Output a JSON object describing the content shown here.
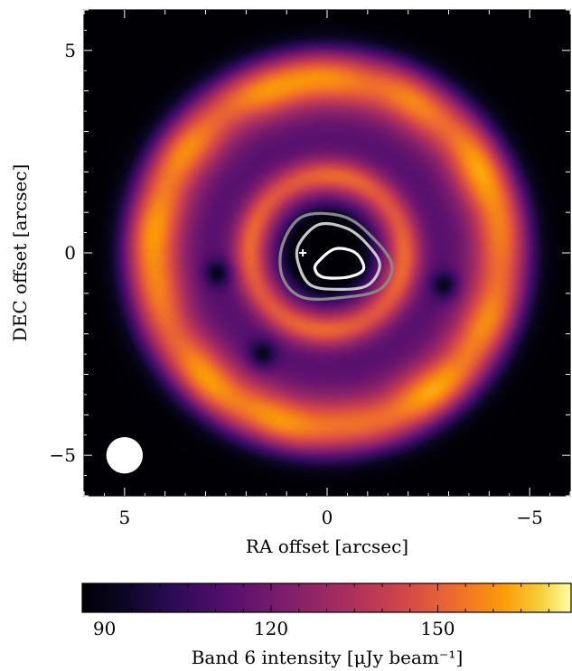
{
  "chart_data": {
    "type": "heatmap",
    "xlabel": "RA offset [arcsec]",
    "ylabel": "DEC offset [arcsec]",
    "xlim": [
      6,
      -6
    ],
    "ylim": [
      -6,
      6
    ],
    "x_ticks": [
      {
        "value": 5,
        "label": "5"
      },
      {
        "value": 0,
        "label": "0"
      },
      {
        "value": -5,
        "label": "−5"
      }
    ],
    "y_ticks": [
      {
        "value": 5,
        "label": "5"
      },
      {
        "value": 0,
        "label": "0"
      },
      {
        "value": -5,
        "label": "−5"
      }
    ],
    "colormap": "inferno",
    "colorbar": {
      "label": "Band 6 intensity [μJy beam⁻¹]",
      "range": [
        86,
        174
      ],
      "ticks": [
        {
          "value": 90,
          "label": "90"
        },
        {
          "value": 120,
          "label": "120"
        },
        {
          "value": 150,
          "label": "150"
        }
      ]
    },
    "rings": [
      {
        "name": "outer",
        "radius_arcsec": 4.3,
        "width_arcsec": 0.75,
        "peak_intensity": 158
      },
      {
        "name": "inner",
        "radius_arcsec": 1.9,
        "width_arcsec": 0.45,
        "peak_intensity": 150
      }
    ],
    "background_intensity": 86,
    "gap_intensity": 112,
    "central_cavity_radius_arcsec": 1.1,
    "dark_spots": [
      {
        "x": 2.7,
        "y": -0.5
      },
      {
        "x": 1.6,
        "y": -2.5
      },
      {
        "x": -2.9,
        "y": -0.8
      }
    ],
    "contours": [
      {
        "color": "#888888",
        "points": [
          [
            1.1,
            0.2
          ],
          [
            0.6,
            0.9
          ],
          [
            -0.4,
            0.9
          ],
          [
            -1.1,
            0.4
          ],
          [
            -1.6,
            -0.3
          ],
          [
            -1.3,
            -0.9
          ],
          [
            -0.4,
            -1.1
          ],
          [
            0.6,
            -1.1
          ],
          [
            1.1,
            -0.6
          ]
        ]
      },
      {
        "color": "#c8c8c8",
        "points": [
          [
            0.7,
            0.2
          ],
          [
            0.2,
            0.7
          ],
          [
            -0.5,
            0.6
          ],
          [
            -1.0,
            0.2
          ],
          [
            -1.3,
            -0.3
          ],
          [
            -1.0,
            -0.8
          ],
          [
            -0.3,
            -0.9
          ],
          [
            0.4,
            -0.8
          ],
          [
            0.7,
            -0.3
          ]
        ]
      },
      {
        "color": "#ffffff",
        "points": [
          [
            0.2,
            -0.2
          ],
          [
            -0.2,
            0.1
          ],
          [
            -0.7,
            0.0
          ],
          [
            -0.9,
            -0.4
          ],
          [
            -0.5,
            -0.6
          ],
          [
            0.1,
            -0.6
          ],
          [
            0.3,
            -0.4
          ]
        ]
      }
    ],
    "marker": {
      "x": 0.6,
      "y": 0.0,
      "symbol": "+"
    },
    "beam": {
      "x": 5,
      "y": -5,
      "diameter_arcsec": 0.9
    }
  }
}
